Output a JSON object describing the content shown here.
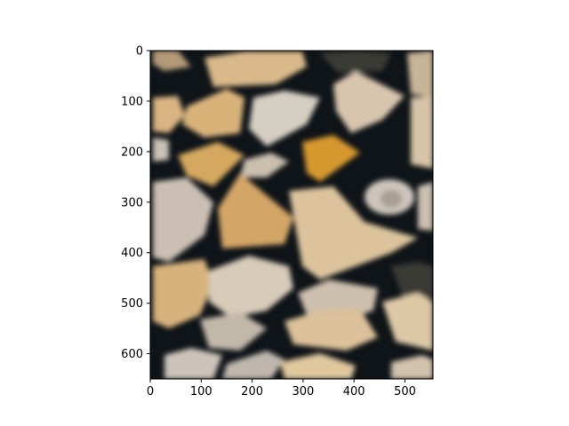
{
  "image": {
    "subject": "stacked split firewood",
    "colors": {
      "background_dark": "#0b0f14",
      "wood_light": "#d9c5a2",
      "wood_mid": "#c9a06a",
      "wood_orange": "#d79a3c",
      "bark_grey": "#8c8a86",
      "gap_shadow": "#141a1f"
    }
  },
  "axes": {
    "x_ticks": [
      "0",
      "100",
      "200",
      "300",
      "400",
      "500"
    ],
    "y_ticks": [
      "0",
      "100",
      "200",
      "300",
      "400",
      "500",
      "600"
    ],
    "x_tick_values": [
      0,
      100,
      200,
      300,
      400,
      500
    ],
    "y_tick_values": [
      0,
      100,
      200,
      300,
      400,
      500,
      600
    ],
    "xlim": [
      0,
      555
    ],
    "ylim": [
      650,
      0
    ]
  }
}
